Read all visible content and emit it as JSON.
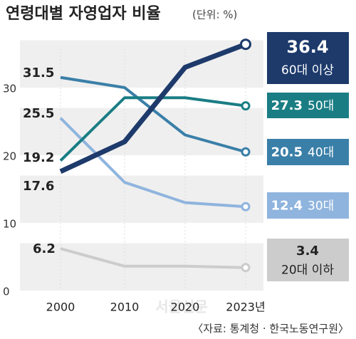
{
  "chart_data": {
    "type": "line",
    "title": "연령대별 자영업자 비율",
    "subtitle": "(단위: %)",
    "source": "〈자료: 통계청 · 한국노동연구원〉",
    "watermark": "서울신문",
    "categories": [
      "2000",
      "2010",
      "2020",
      "2023년"
    ],
    "ylim": [
      0,
      40
    ],
    "yticks": [
      0,
      10,
      20,
      30
    ],
    "series": [
      {
        "name": "60대 이상",
        "color": "#1d3a6b",
        "values": [
          17.6,
          22,
          33,
          36.4
        ]
      },
      {
        "name": "50대",
        "color": "#1a7d84",
        "values": [
          19.2,
          28.5,
          28.5,
          27.3
        ]
      },
      {
        "name": "40대",
        "color": "#3a7fa8",
        "values": [
          31.5,
          30,
          23,
          20.5
        ]
      },
      {
        "name": "30대",
        "color": "#8fb4de",
        "values": [
          25.5,
          16,
          13,
          12.4
        ]
      },
      {
        "name": "20대 이하",
        "color": "#cccccc",
        "values": [
          6.2,
          3.6,
          3.6,
          3.4
        ]
      }
    ]
  }
}
